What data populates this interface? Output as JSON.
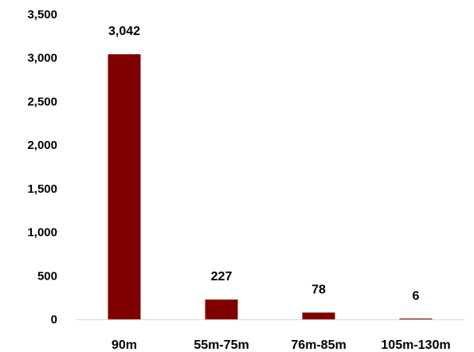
{
  "chart_data": {
    "type": "bar",
    "categories": [
      "90m",
      "55m-75m",
      "76m-85m",
      "105m-130m"
    ],
    "values": [
      3042,
      227,
      78,
      6
    ],
    "data_labels": [
      "3,042",
      "227",
      "78",
      "6"
    ],
    "y_ticks": [
      0,
      500,
      1000,
      1500,
      2000,
      2500,
      3000,
      3500
    ],
    "y_tick_labels": [
      "0",
      "500",
      "1,000",
      "1,500",
      "2,000",
      "2,500",
      "3,000",
      "3,500"
    ],
    "ylim": [
      0,
      3500
    ],
    "title": "",
    "xlabel": "",
    "ylabel": "",
    "grid": false,
    "legend": "none",
    "bar_color": "#800000",
    "axis_color": "#d9d9d9"
  }
}
